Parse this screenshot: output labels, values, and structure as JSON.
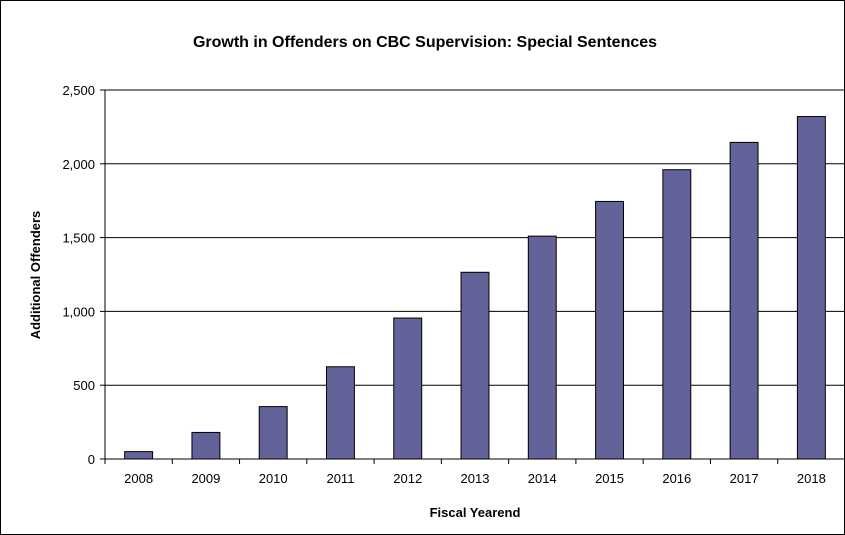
{
  "chart_data": {
    "type": "bar",
    "title": "Growth in Offenders on CBC Supervision: Special Sentences",
    "xlabel": "Fiscal Yearend",
    "ylabel": "Additional Offenders",
    "categories": [
      "2008",
      "2009",
      "2010",
      "2011",
      "2012",
      "2013",
      "2014",
      "2015",
      "2016",
      "2017",
      "2018"
    ],
    "values": [
      50,
      180,
      355,
      625,
      955,
      1265,
      1510,
      1745,
      1960,
      2145,
      2320
    ],
    "ylim": [
      0,
      2500
    ],
    "yticks": [
      0,
      500,
      1000,
      1500,
      2000,
      2500
    ],
    "ytick_labels": [
      "0",
      "500",
      "1,000",
      "1,500",
      "2,000",
      "2,500"
    ],
    "grid": true,
    "legend": "none",
    "colors": {
      "bar": "#63639a",
      "bar_stroke": "#000000",
      "grid": "#000000"
    }
  }
}
